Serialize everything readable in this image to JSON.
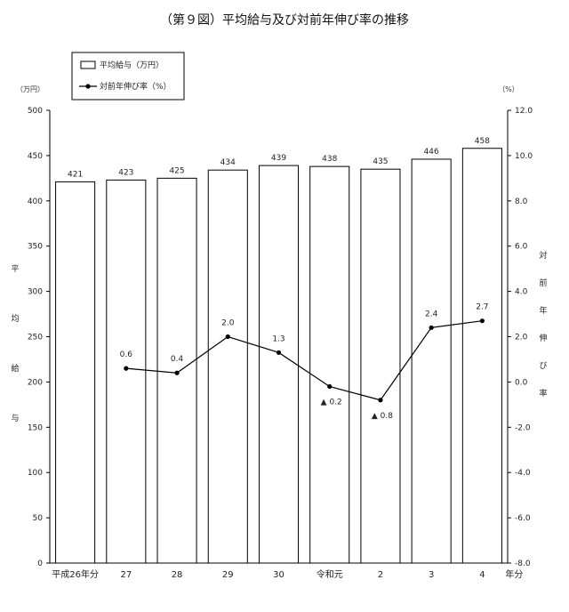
{
  "chart_data": {
    "type": "bar",
    "title": "（第９図）平均給与及び対前年伸び率の推移",
    "categories": [
      "平成26年分",
      "27",
      "28",
      "29",
      "30",
      "令和元",
      "2",
      "3",
      "4"
    ],
    "x_suffix": "年分",
    "series": [
      {
        "name": "平均給与（万円）",
        "kind": "bar",
        "axis": "left",
        "values": [
          421,
          423,
          425,
          434,
          439,
          438,
          435,
          446,
          458
        ],
        "labels": [
          "421",
          "423",
          "425",
          "434",
          "439",
          "438",
          "435",
          "446",
          "458"
        ]
      },
      {
        "name": "対前年伸び率（%）",
        "kind": "line",
        "axis": "right",
        "values": [
          null,
          0.6,
          0.4,
          2.0,
          1.3,
          -0.2,
          -0.8,
          2.4,
          2.7
        ],
        "labels": [
          "",
          "0.6",
          "0.4",
          "2.0",
          "1.3",
          "▲ 0.2",
          "▲ 0.8",
          "2.4",
          "2.7"
        ]
      }
    ],
    "y_left": {
      "unit": "（万円）",
      "label": "平均給与",
      "ylim": [
        0,
        500
      ],
      "ticks": [
        "0",
        "50",
        "100",
        "150",
        "200",
        "250",
        "300",
        "350",
        "400",
        "450",
        "500"
      ]
    },
    "y_right": {
      "unit": "（%）",
      "label": "対前年伸び率",
      "ylim": [
        -8,
        12
      ],
      "ticks": [
        "-8.0",
        "-6.0",
        "-4.0",
        "-2.0",
        "0.0",
        "2.0",
        "4.0",
        "6.0",
        "8.0",
        "10.0",
        "12.0"
      ]
    },
    "legend": {
      "placement": "top-left"
    },
    "grid": false
  }
}
